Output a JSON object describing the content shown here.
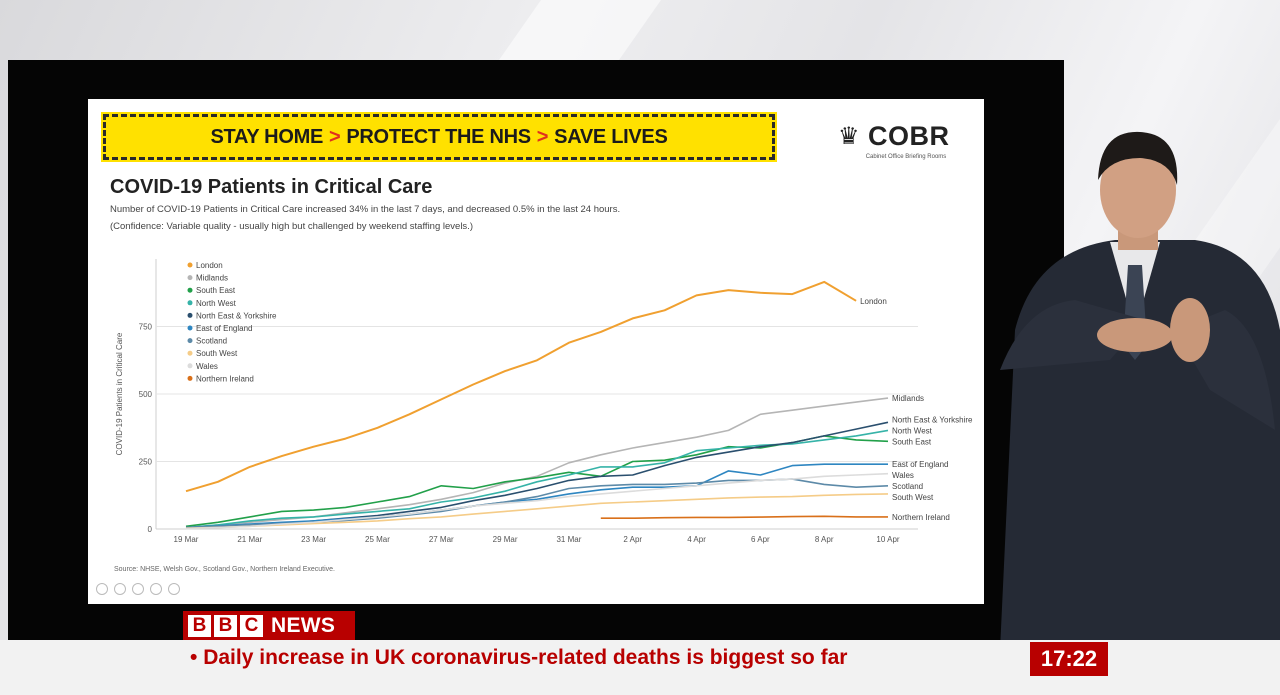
{
  "banner": {
    "part1": "STAY HOME",
    "part2": "PROTECT THE NHS",
    "part3": "SAVE LIVES",
    "separator": ">"
  },
  "cobr": {
    "name": "COBR",
    "subtitle": "Cabinet Office Briefing Rooms"
  },
  "title": "COVID-19 Patients in Critical Care",
  "subtitle1": "Number of COVID-19 Patients in Critical Care increased 34% in the last 7 days, and decreased 0.5% in the last 24 hours.",
  "subtitle2": "(Confidence: Variable quality - usually high but challenged by weekend staffing levels.)",
  "source": "Source: NHSE, Welsh Gov., Scotland Gov., Northern Ireland Executive.",
  "ticker": {
    "text": "Daily increase in UK coronavirus-related deaths is biggest so far",
    "time": "17:22",
    "brand_letters": [
      "B",
      "B",
      "C"
    ],
    "brand_word": "NEWS"
  },
  "colors": {
    "banner": "#ffe100",
    "bbc_red": "#b80000"
  },
  "chart_data": {
    "type": "line",
    "title": "COVID-19 Patients in Critical Care",
    "ylabel": "COVID-19 Patients in Critical Care",
    "xlabel": "",
    "ylim": [
      0,
      1000
    ],
    "yticks": [
      0,
      250,
      500,
      750
    ],
    "x": [
      "19 Mar",
      "20 Mar",
      "21 Mar",
      "22 Mar",
      "23 Mar",
      "24 Mar",
      "25 Mar",
      "26 Mar",
      "27 Mar",
      "28 Mar",
      "29 Mar",
      "30 Mar",
      "31 Mar",
      "1 Apr",
      "2 Apr",
      "3 Apr",
      "4 Apr",
      "5 Apr",
      "6 Apr",
      "7 Apr",
      "8 Apr",
      "9 Apr",
      "10 Apr"
    ],
    "xticks": [
      "19 Mar",
      "21 Mar",
      "23 Mar",
      "25 Mar",
      "27 Mar",
      "29 Mar",
      "31 Mar",
      "2 Apr",
      "4 Apr",
      "6 Apr",
      "8 Apr",
      "10 Apr"
    ],
    "legend_position": "top-left",
    "grid": true,
    "series": [
      {
        "name": "London",
        "color": "#f0a030",
        "values": [
          140,
          175,
          230,
          270,
          305,
          335,
          375,
          425,
          480,
          535,
          585,
          625,
          690,
          730,
          780,
          810,
          865,
          885,
          875,
          870,
          915,
          845,
          null
        ]
      },
      {
        "name": "Midlands",
        "color": "#b5b5b5",
        "values": [
          5,
          15,
          25,
          35,
          45,
          60,
          75,
          90,
          110,
          135,
          170,
          195,
          245,
          275,
          300,
          320,
          340,
          365,
          425,
          440,
          455,
          470,
          485
        ]
      },
      {
        "name": "South East",
        "color": "#22a04a",
        "values": [
          10,
          25,
          45,
          65,
          70,
          80,
          100,
          120,
          160,
          150,
          175,
          190,
          210,
          195,
          250,
          255,
          275,
          305,
          300,
          320,
          345,
          330,
          325
        ]
      },
      {
        "name": "North West",
        "color": "#36b3a8",
        "values": [
          5,
          15,
          30,
          40,
          45,
          55,
          65,
          75,
          100,
          115,
          140,
          175,
          200,
          230,
          230,
          245,
          290,
          300,
          310,
          315,
          330,
          345,
          365
        ]
      },
      {
        "name": "North East & Yorkshire",
        "color": "#2a4f6e",
        "values": [
          5,
          10,
          15,
          20,
          30,
          40,
          50,
          65,
          80,
          105,
          125,
          150,
          180,
          195,
          200,
          235,
          265,
          285,
          305,
          320,
          345,
          370,
          395
        ]
      },
      {
        "name": "East of England",
        "color": "#2e86c1",
        "values": [
          5,
          12,
          18,
          25,
          30,
          38,
          45,
          55,
          70,
          85,
          100,
          110,
          130,
          145,
          155,
          155,
          160,
          215,
          200,
          235,
          240,
          240,
          240
        ]
      },
      {
        "name": "Scotland",
        "color": "#5d8aa8",
        "values": [
          5,
          10,
          15,
          20,
          25,
          32,
          40,
          52,
          65,
          85,
          100,
          120,
          150,
          160,
          165,
          165,
          170,
          180,
          180,
          185,
          165,
          155,
          160
        ]
      },
      {
        "name": "South West",
        "color": "#f5cc88",
        "values": [
          3,
          6,
          10,
          15,
          20,
          25,
          30,
          38,
          45,
          55,
          65,
          75,
          85,
          95,
          100,
          105,
          110,
          115,
          118,
          120,
          125,
          128,
          130
        ]
      },
      {
        "name": "Wales",
        "color": "#dcdcdc",
        "values": [
          2,
          5,
          10,
          18,
          25,
          35,
          45,
          55,
          70,
          85,
          95,
          105,
          120,
          130,
          140,
          150,
          160,
          170,
          180,
          185,
          195,
          200,
          205
        ]
      },
      {
        "name": "Northern Ireland",
        "color": "#d9701a",
        "values": [
          null,
          null,
          null,
          null,
          null,
          null,
          null,
          null,
          null,
          null,
          null,
          null,
          null,
          40,
          40,
          42,
          43,
          43,
          44,
          46,
          47,
          45,
          45
        ]
      }
    ]
  }
}
